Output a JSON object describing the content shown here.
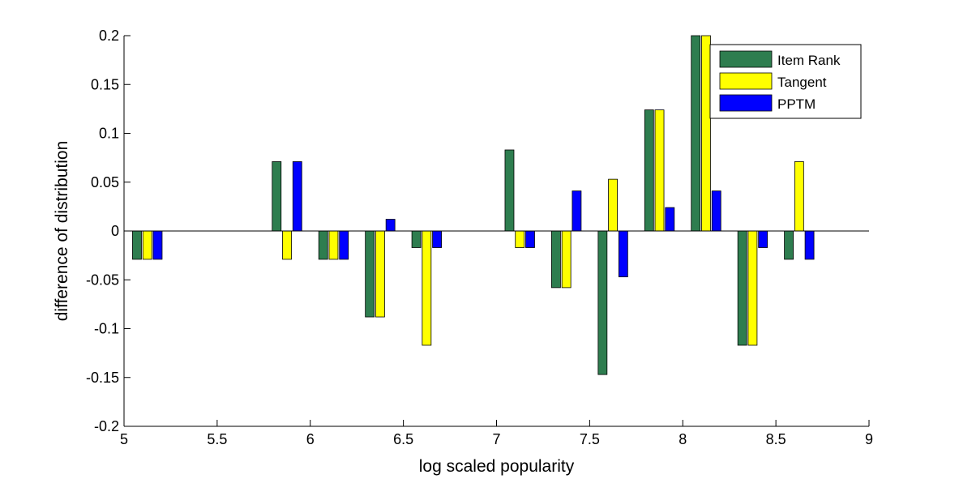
{
  "chart_data": {
    "type": "bar",
    "title": "",
    "xlabel": "log scaled popularity",
    "ylabel": "difference of distribution",
    "xlim": [
      5,
      9
    ],
    "ylim": [
      -0.2,
      0.2
    ],
    "xticks": [
      5,
      5.5,
      6,
      6.5,
      7,
      7.5,
      8,
      8.5,
      9
    ],
    "xtick_labels": [
      "5",
      "5.5",
      "6",
      "6.5",
      "7",
      "7.5",
      "8",
      "8.5",
      "9"
    ],
    "yticks": [
      -0.2,
      -0.15,
      -0.1,
      -0.05,
      0,
      0.05,
      0.1,
      0.15,
      0.2
    ],
    "ytick_labels": [
      "-0.2",
      "-0.15",
      "-0.1",
      "-0.05",
      "0",
      "0.05",
      "0.1",
      "0.15",
      "0.2"
    ],
    "x": [
      5.125,
      5.875,
      6.125,
      6.375,
      6.625,
      7.125,
      7.375,
      7.625,
      7.875,
      8.125,
      8.375,
      8.625
    ],
    "grid": false,
    "legend_position": "top-right",
    "series": [
      {
        "name": "Item Rank",
        "color": "#2e7d4f",
        "values": [
          -0.029,
          0.071,
          -0.029,
          -0.088,
          -0.017,
          0.083,
          -0.058,
          -0.147,
          0.124,
          0.2,
          -0.117,
          -0.029
        ]
      },
      {
        "name": "Tangent",
        "color": "#ffff00",
        "values": [
          -0.029,
          -0.029,
          -0.029,
          -0.088,
          -0.117,
          -0.017,
          -0.058,
          0.053,
          0.124,
          0.2,
          -0.117,
          0.071
        ]
      },
      {
        "name": "PPTM",
        "color": "#0000ff",
        "values": [
          -0.029,
          0.071,
          -0.029,
          0.012,
          -0.017,
          -0.017,
          0.041,
          -0.047,
          0.024,
          0.041,
          -0.017,
          -0.029
        ]
      }
    ]
  }
}
